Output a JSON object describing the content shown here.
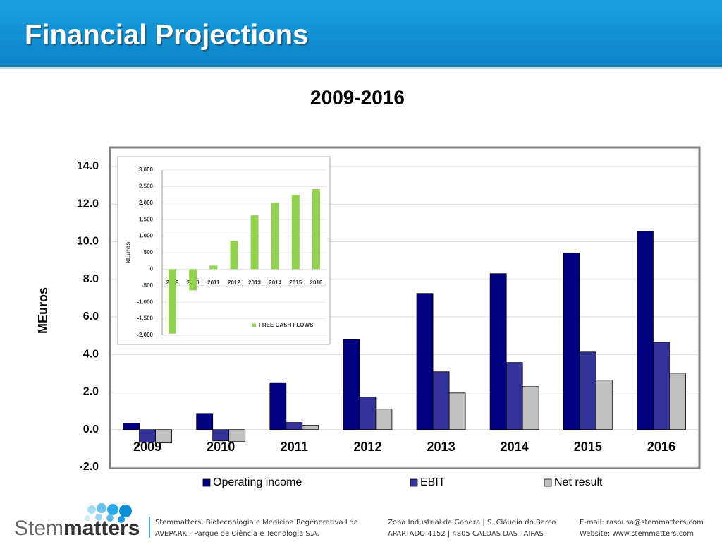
{
  "header": {
    "title": "Financial Projections"
  },
  "chart_data": [
    {
      "type": "bar",
      "title": "2009-2016",
      "y_label": "MEuros",
      "categories": [
        "2009",
        "2010",
        "2011",
        "2012",
        "2013",
        "2014",
        "2015",
        "2016"
      ],
      "series": [
        {
          "name": "Operating income",
          "color": "#000080",
          "values": [
            0.34,
            0.86,
            2.5,
            4.8,
            7.25,
            8.3,
            9.4,
            10.55
          ]
        },
        {
          "name": "EBIT",
          "color": "#333399",
          "values": [
            -0.68,
            -0.6,
            0.38,
            1.73,
            3.08,
            3.57,
            4.13,
            4.65
          ]
        },
        {
          "name": "Net result",
          "color": "#c0c0c0",
          "values": [
            -0.71,
            -0.64,
            0.23,
            1.09,
            1.95,
            2.29,
            2.63,
            3.0
          ]
        }
      ],
      "ylim": [
        -2,
        14
      ],
      "yticks": [
        {
          "value": -2,
          "label": "-2.0"
        },
        {
          "value": 0,
          "label": "0.0"
        },
        {
          "value": 2,
          "label": "2.0"
        },
        {
          "value": 4,
          "label": "4.0"
        },
        {
          "value": 6,
          "label": "6.0"
        },
        {
          "value": 8,
          "label": "8.0"
        },
        {
          "value": 10,
          "label": "10.0"
        },
        {
          "value": 12,
          "label": "12.0"
        },
        {
          "value": 14,
          "label": "14.0"
        }
      ],
      "grid": true,
      "legend": "bottom"
    },
    {
      "type": "bar",
      "y_label": "kEuros",
      "categories": [
        "2009",
        "2010",
        "2011",
        "2012",
        "2013",
        "2014",
        "2015",
        "2016"
      ],
      "series": [
        {
          "name": "FREE CASH FLOWS",
          "color": "#92d050",
          "values": [
            -1950,
            -640,
            107,
            857,
            1630,
            2010,
            2250,
            2420
          ]
        }
      ],
      "ylim": [
        -2000,
        3000
      ],
      "yticks": [
        {
          "value": -2000,
          "label": "-2.000"
        },
        {
          "value": -1500,
          "label": "-1.500"
        },
        {
          "value": -1000,
          "label": "-1.000"
        },
        -500,
        0,
        500,
        {
          "value": 1000,
          "label": "1.000"
        },
        {
          "value": 1500,
          "label": "1.500"
        },
        {
          "value": 2000,
          "label": "2.000"
        },
        {
          "value": 2500,
          "label": "2.500"
        },
        {
          "value": 3000,
          "label": "3.000"
        }
      ],
      "grid": true,
      "legend": "bottom right"
    }
  ],
  "footer": {
    "logo": [
      "Stem",
      "matters"
    ],
    "company": [
      "Stemmatters, Biotecnologia e Medicina Regenerativa Lda",
      "AVEPARK - Parque de Ciência e Tecnologia S.A."
    ],
    "address": [
      "Zona Industrial da Gandra | S. Cláudio do Barco",
      "APARTADO 4152 | 4805 CALDAS DAS TAIPAS"
    ],
    "contact": [
      "E-mail: rasousa@stemmatters.com",
      "Website: www.stemmatters.com"
    ]
  }
}
